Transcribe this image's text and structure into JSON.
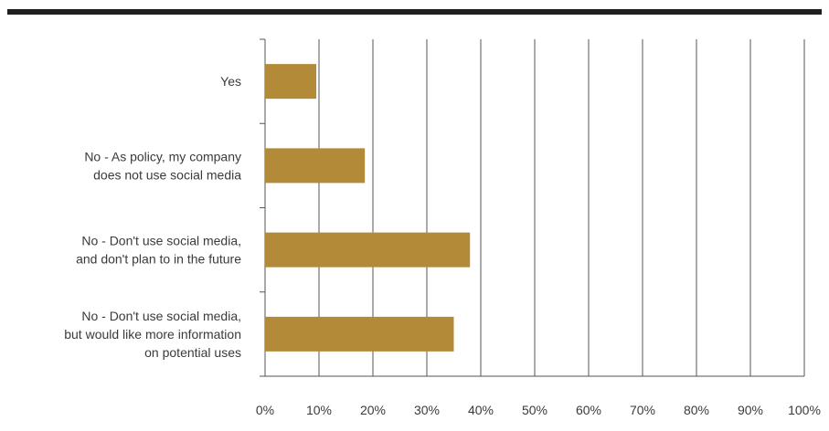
{
  "chart_data": {
    "type": "bar",
    "orientation": "horizontal",
    "categories": [
      [
        "Yes"
      ],
      [
        "No - As policy, my company",
        "does not use social media"
      ],
      [
        "No - Don't use social media,",
        "and don't plan to in the future"
      ],
      [
        "No - Don't use social media,",
        "but would like more information",
        "on potential uses"
      ]
    ],
    "values": [
      9.5,
      18.5,
      38,
      35
    ],
    "xlim": [
      0,
      100
    ],
    "ticks": [
      "0%",
      "10%",
      "20%",
      "30%",
      "40%",
      "50%",
      "60%",
      "70%",
      "80%",
      "90%",
      "100%"
    ],
    "grid": true,
    "bar_color": "#b38a38",
    "title": "",
    "xlabel": "",
    "ylabel": ""
  }
}
